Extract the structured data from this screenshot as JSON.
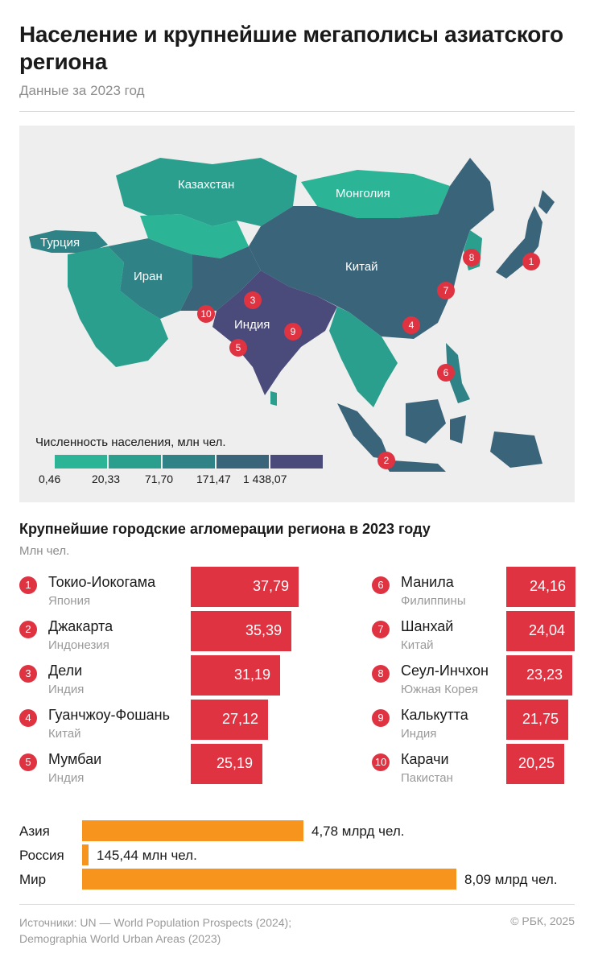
{
  "header": {
    "title": "Население и крупнейшие мегаполисы азиатского региона",
    "subtitle": "Данные за 2023 год"
  },
  "map": {
    "countries": {
      "kazakhstan": "Казахстан",
      "mongolia": "Монголия",
      "turkey": "Турция",
      "iran": "Иран",
      "china": "Китай",
      "india": "Индия"
    },
    "legend": {
      "title": "Численность населения, млн чел.",
      "colors": [
        "#2bb596",
        "#2a9f8d",
        "#2f8285",
        "#3a6479",
        "#4a4b7a"
      ],
      "ticks": [
        "0,46",
        "20,33",
        "71,70",
        "171,47",
        "1 438,07"
      ]
    },
    "region_colors": {
      "background": "#eeeeee",
      "badge": "#e03342"
    }
  },
  "cities_section": {
    "title": "Крупнейшие городские агломерации региона в 2023 году",
    "unit": "Млн чел."
  },
  "chart_data": [
    {
      "type": "bar",
      "title": "Крупнейшие городские агломерации региона в 2023 году",
      "ylabel": "Млн чел.",
      "categories": [
        "Токио-Иокогама",
        "Джакарта",
        "Дели",
        "Гуанчжоу-Фошань",
        "Мумбаи",
        "Манила",
        "Шанхай",
        "Сеул-Инчхон",
        "Калькутта",
        "Карачи"
      ],
      "countries": [
        "Япония",
        "Индонезия",
        "Индия",
        "Китай",
        "Индия",
        "Филиппины",
        "Китай",
        "Южная Корея",
        "Индия",
        "Пакистан"
      ],
      "ranks": [
        "1",
        "2",
        "3",
        "4",
        "5",
        "6",
        "7",
        "8",
        "9",
        "10"
      ],
      "values": [
        37.79,
        35.39,
        31.19,
        27.12,
        25.19,
        24.16,
        24.04,
        23.23,
        21.75,
        20.25
      ],
      "value_labels": [
        "37,79",
        "35,39",
        "31,19",
        "27,12",
        "25,19",
        "24,16",
        "24,04",
        "23,23",
        "21,75",
        "20,25"
      ],
      "color": "#e03342"
    },
    {
      "type": "bar",
      "categories": [
        "Азия",
        "Россия",
        "Мир"
      ],
      "values_millions": [
        4780,
        145.44,
        8090
      ],
      "value_labels": [
        "4,78 млрд чел.",
        "145,44 млн чел.",
        "8,09 млрд чел."
      ],
      "color": "#f7941d"
    }
  ],
  "footer": {
    "sources_line1": "Источники: UN — World Population Prospects (2024);",
    "sources_line2": "Demographia World Urban Areas (2023)",
    "copyright": "© РБК, 2025"
  }
}
